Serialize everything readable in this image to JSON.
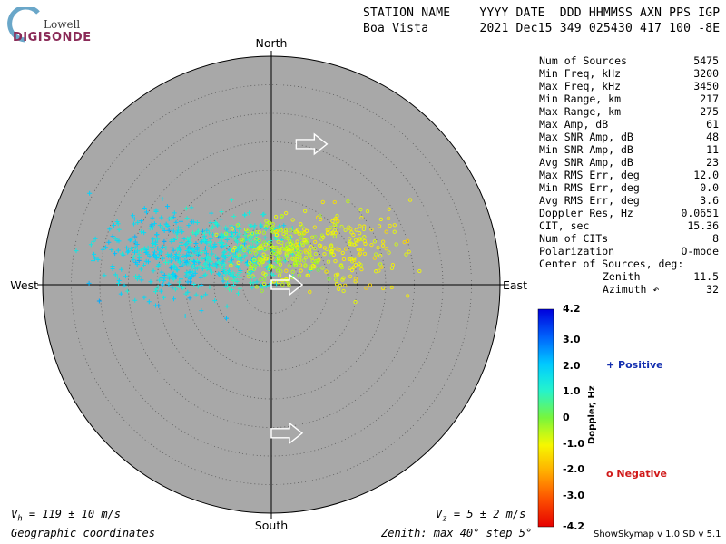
{
  "logo": {
    "line1": "Lowell",
    "line2": "DIGISONDE"
  },
  "header": {
    "line1": "STATION NAME    YYYY DATE  DDD HHMMSS AXN PPS IGP",
    "line2": "Boa Vista       2021 Dec15 349 025430 417 100 -8E"
  },
  "stats": [
    {
      "label": "Num of Sources",
      "value": "5475"
    },
    {
      "label": "Min Freq, kHz",
      "value": "3200"
    },
    {
      "label": "Max Freq, kHz",
      "value": "3450"
    },
    {
      "label": "Min Range, km",
      "value": "217"
    },
    {
      "label": "Max Range, km",
      "value": "275"
    },
    {
      "label": "Max Amp, dB",
      "value": "61"
    },
    {
      "label": "Max SNR Amp, dB",
      "value": "48"
    },
    {
      "label": "Min SNR Amp, dB",
      "value": "11"
    },
    {
      "label": "Avg SNR Amp, dB",
      "value": "23"
    },
    {
      "label": "Max RMS Err, deg",
      "value": "12.0"
    },
    {
      "label": "Min RMS Err, deg",
      "value": "0.0"
    },
    {
      "label": "Avg RMS Err, deg",
      "value": "3.6"
    },
    {
      "label": "Doppler Res, Hz",
      "value": "0.0651"
    },
    {
      "label": "CIT, sec",
      "value": "15.36"
    },
    {
      "label": "Num of CITs",
      "value": "8"
    },
    {
      "label": "Polarization",
      "value": "O-mode"
    }
  ],
  "center": {
    "heading": "Center of Sources, deg:",
    "zenith_label": "Zenith",
    "zenith_value": "11.5",
    "azimuth_label": "Azimuth",
    "azimuth_value": "32"
  },
  "directions": {
    "north": "North",
    "south": "South",
    "east": "East",
    "west": "West"
  },
  "colorbar": {
    "title": "Doppler, Hz",
    "ticks": [
      "4.2",
      "3.0",
      "2.0",
      "1.0",
      "0",
      "-1.0",
      "-2.0",
      "-3.0",
      "-4.2"
    ],
    "range": [
      -4.2,
      4.2
    ]
  },
  "legend": {
    "positive": "+ Positive",
    "negative": "o Negative"
  },
  "footer": {
    "vh_label": "V",
    "vh_sub": "h",
    "vh_value": " = 119 ± 10 m/s",
    "vz_label": "V",
    "vz_sub": "z",
    "vz_value": " = 5 ± 2 m/s",
    "coords": "Geographic coordinates",
    "zenith": "Zenith: max 40°  step 5°",
    "version": "ShowSkymap v 1.0   SD v 5.1"
  },
  "colors": {
    "plot_bg": "#a8a8a8",
    "positive": "#1530b0",
    "negative": "#d01818"
  },
  "chart_data": {
    "type": "scatter",
    "title": "",
    "zenith_max_deg": 40,
    "zenith_step_deg": 5,
    "clusters": [
      {
        "sign": "positive",
        "doppler": 1.8,
        "center_zenith": 18,
        "center_azimuth": 285,
        "spread": 7,
        "count": 320
      },
      {
        "sign": "positive",
        "doppler": 1.3,
        "center_zenith": 9,
        "center_azimuth": 310,
        "spread": 6,
        "count": 260
      },
      {
        "sign": "negative",
        "doppler": -0.6,
        "center_zenith": 6,
        "center_azimuth": 20,
        "spread": 5,
        "count": 240
      },
      {
        "sign": "negative",
        "doppler": -1.0,
        "center_zenith": 15,
        "center_azimuth": 65,
        "spread": 6,
        "count": 160
      }
    ],
    "arrows": [
      {
        "zenith": 25,
        "azimuth": 10
      },
      {
        "zenith": 0,
        "azimuth": 0
      },
      {
        "zenith": 26,
        "azimuth": 180
      }
    ]
  }
}
